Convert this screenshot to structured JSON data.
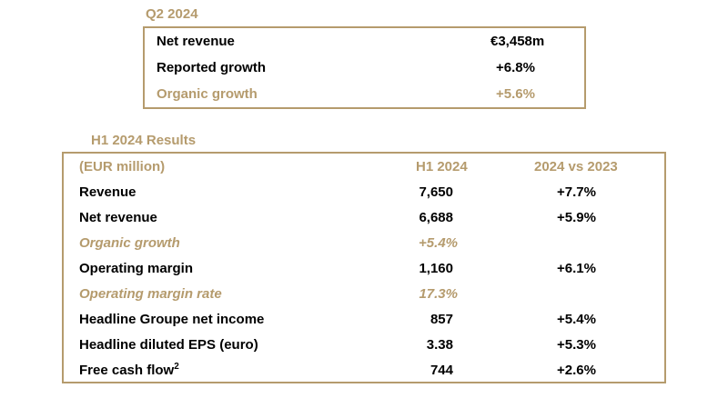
{
  "q2": {
    "title": "Q2 2024",
    "rows": [
      {
        "label": "Net revenue",
        "value": "€3,458m"
      },
      {
        "label": "Reported growth",
        "value": "+6.8%"
      },
      {
        "label": "Organic growth",
        "value": "+5.6%"
      }
    ]
  },
  "h1": {
    "title": "H1 2024 Results",
    "header": {
      "unit": "(EUR million)",
      "col1": "H1 2024",
      "col2": "2024 vs 2023"
    },
    "rows": [
      {
        "label": "Revenue",
        "value": "7,650",
        "change": "+7.7%"
      },
      {
        "label": "Net revenue",
        "value": "6,688",
        "change": "+5.9%"
      },
      {
        "label": "Organic growth",
        "value": "+5.4%",
        "change": ""
      },
      {
        "label": "Operating margin",
        "value": "1,160",
        "change": "+6.1%"
      },
      {
        "label": "Operating margin rate",
        "value": "17.3%",
        "change": ""
      },
      {
        "label": "Headline Groupe net income",
        "value": "857",
        "change": "+5.4%"
      },
      {
        "label": "Headline diluted EPS (euro)",
        "value": "3.38",
        "change": "+5.3%"
      },
      {
        "label": "Free cash flow",
        "label_sup": "2",
        "value": "744",
        "change": "+2.6%"
      }
    ]
  },
  "colors": {
    "accent": "#b59b6d",
    "text": "#000000"
  }
}
